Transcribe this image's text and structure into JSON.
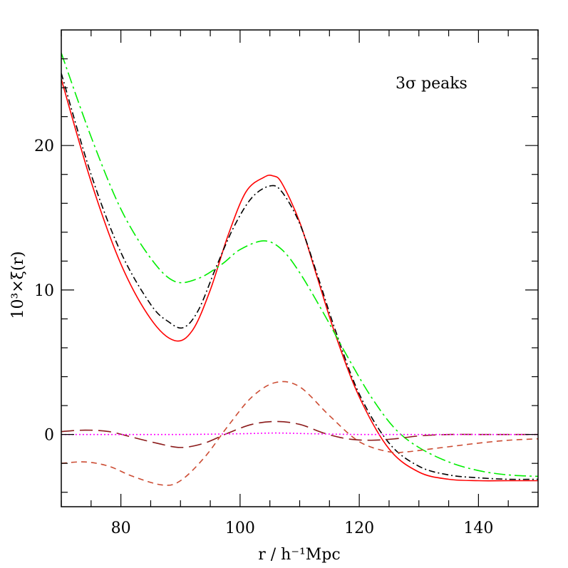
{
  "chart_data": {
    "type": "line",
    "title": "",
    "annotation": "3σ peaks",
    "xlabel": "r / h⁻¹Mpc",
    "ylabel": "10³×ξ(r)",
    "xlim": [
      70,
      150
    ],
    "ylim": [
      -5,
      28
    ],
    "x_ticks": [
      80,
      100,
      120,
      140
    ],
    "y_ticks": [
      0,
      10,
      20
    ],
    "grid": false,
    "legend": "none",
    "series": [
      {
        "color": "#ff0000",
        "dash": "solid",
        "x": [
          70,
          75,
          80,
          85,
          89,
          92,
          95,
          98,
          101,
          104,
          105.5,
          107,
          110,
          113,
          116,
          120,
          125,
          130,
          135,
          140,
          145,
          150
        ],
        "y": [
          24.6,
          17.5,
          11.8,
          8.0,
          6.5,
          7.2,
          10.0,
          13.8,
          16.8,
          17.8,
          17.9,
          17.4,
          14.7,
          10.8,
          6.9,
          2.6,
          -1.0,
          -2.6,
          -3.1,
          -3.2,
          -3.2,
          -3.2
        ]
      },
      {
        "color": "#000000",
        "dash": "dashdot",
        "x": [
          70,
          75,
          80,
          85,
          88,
          90.5,
          93,
          96,
          99,
          102,
          105,
          107,
          110,
          113,
          116,
          120,
          125,
          130,
          135,
          140,
          145,
          150
        ],
        "y": [
          25.0,
          18.0,
          12.6,
          9.0,
          7.8,
          7.4,
          8.6,
          11.6,
          14.4,
          16.4,
          17.2,
          16.8,
          14.6,
          11.0,
          7.2,
          2.8,
          -0.6,
          -2.2,
          -2.8,
          -3.0,
          -3.1,
          -3.1
        ]
      },
      {
        "color": "#00ee00",
        "dash": "longdashdot",
        "x": [
          70,
          75,
          80,
          85,
          89,
          93,
          97,
          100,
          104,
          107,
          110,
          114,
          118,
          122,
          126,
          130,
          135,
          140,
          145,
          150
        ],
        "y": [
          26.4,
          20.6,
          15.6,
          12.2,
          10.6,
          10.8,
          11.8,
          12.8,
          13.4,
          12.8,
          11.2,
          8.4,
          5.4,
          2.6,
          0.4,
          -0.9,
          -1.9,
          -2.5,
          -2.8,
          -2.9
        ]
      },
      {
        "color": "#cc4c33",
        "dash": "shortdash",
        "x": [
          70,
          74,
          78,
          82,
          87,
          90,
          94,
          98,
          102,
          106,
          110,
          115,
          120,
          125,
          128,
          132,
          136,
          140,
          145,
          150
        ],
        "y": [
          -2.0,
          -1.9,
          -2.2,
          -2.9,
          -3.5,
          -3.2,
          -1.6,
          0.6,
          2.6,
          3.6,
          3.3,
          1.3,
          -0.5,
          -1.2,
          -1.2,
          -1.0,
          -0.8,
          -0.6,
          -0.4,
          -0.3
        ]
      },
      {
        "color": "#8b1a1a",
        "dash": "longdash",
        "x": [
          70,
          74,
          78,
          82,
          86,
          90,
          94,
          98,
          102,
          106,
          110,
          114,
          118,
          122,
          126,
          130,
          135,
          140,
          145,
          150
        ],
        "y": [
          0.2,
          0.3,
          0.2,
          -0.2,
          -0.6,
          -0.9,
          -0.6,
          0.1,
          0.7,
          0.9,
          0.7,
          0.1,
          -0.3,
          -0.4,
          -0.3,
          -0.1,
          0.0,
          0.0,
          0.0,
          0.0
        ]
      },
      {
        "color": "#ff00ff",
        "dash": "dotted",
        "x": [
          70,
          80,
          90,
          100,
          106,
          112,
          120,
          130,
          140,
          150
        ],
        "y": [
          0.0,
          0.0,
          0.0,
          0.05,
          0.1,
          0.05,
          0.0,
          0.0,
          0.0,
          0.0
        ]
      }
    ]
  }
}
